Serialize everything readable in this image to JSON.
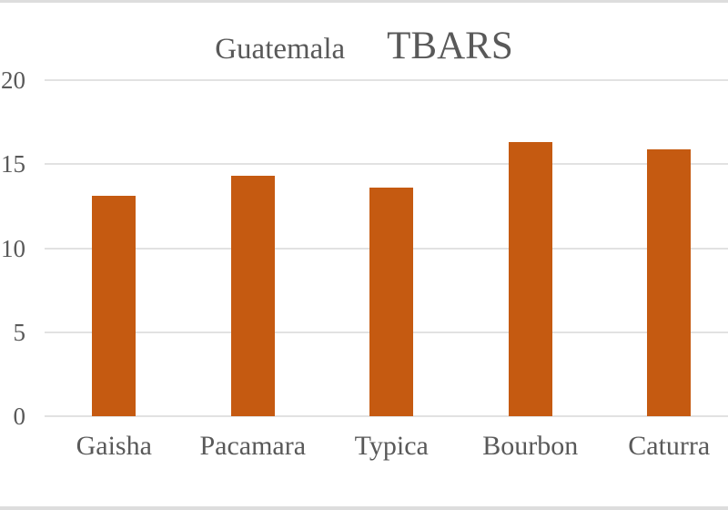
{
  "chart_data": {
    "type": "bar",
    "title": "Guatemala TBARS",
    "title_parts": {
      "region": "Guatemala",
      "metric": "TBARS"
    },
    "categories": [
      "Gaisha",
      "Pacamara",
      "Typica",
      "Bourbon",
      "Caturra"
    ],
    "values": [
      13.1,
      14.3,
      13.6,
      16.3,
      15.9
    ],
    "xlabel": "",
    "ylabel": "",
    "ylim": [
      0,
      20
    ],
    "yticks": [
      0,
      5,
      10,
      15,
      20
    ],
    "grid": "horizontal",
    "legend": "none",
    "colors": {
      "bar": "#C55A11",
      "text": "#595959",
      "gridline": "#E2E2E2",
      "frame": "#DDDDDD",
      "background": "#FFFFFF"
    }
  }
}
